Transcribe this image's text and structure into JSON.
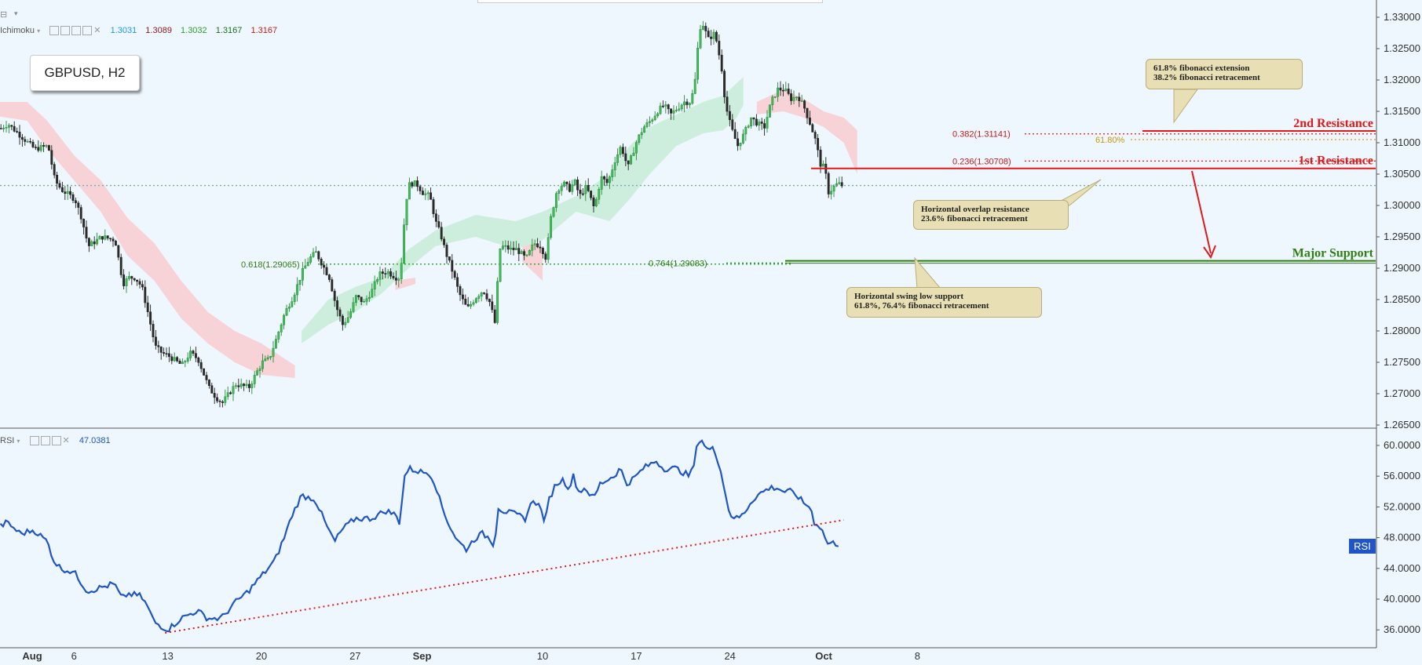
{
  "chart_data": [
    {
      "type": "candlestick",
      "title": "GBPUSD, H2",
      "symbol": "GBPUSD",
      "timeframe": "H2",
      "ylim": [
        1.2615,
        1.3345
      ],
      "y_ticks": [
        "1.33000",
        "1.32500",
        "1.32000",
        "1.31500",
        "1.31000",
        "1.30500",
        "1.30000",
        "1.29500",
        "1.29000",
        "1.28500",
        "1.28000",
        "1.27500",
        "1.27000",
        "1.26500"
      ],
      "x_ticks": [
        {
          "label": "Aug",
          "day": 0
        },
        {
          "label": "6",
          "day": 5
        },
        {
          "label": "13",
          "day": 12
        },
        {
          "label": "20",
          "day": 19
        },
        {
          "label": "27",
          "day": 26
        },
        {
          "label": "Sep",
          "day": 31
        },
        {
          "label": "10",
          "day": 40
        },
        {
          "label": "17",
          "day": 47
        },
        {
          "label": "24",
          "day": 54
        },
        {
          "label": "Oct",
          "day": 61
        },
        {
          "label": "8",
          "day": 68
        }
      ],
      "price_path": [
        [
          -1.5,
          1.311
        ],
        [
          0,
          1.313
        ],
        [
          1,
          1.311
        ],
        [
          2,
          1.309
        ],
        [
          3,
          1.3095
        ],
        [
          3.5,
          1.304
        ],
        [
          4,
          1.3025
        ],
        [
          5,
          1.301
        ],
        [
          5.5,
          1.298
        ],
        [
          6,
          1.2935
        ],
        [
          7,
          1.295
        ],
        [
          8,
          1.2945
        ],
        [
          8.6,
          1.2875
        ],
        [
          9,
          1.2885
        ],
        [
          9.5,
          1.2885
        ],
        [
          10,
          1.287
        ],
        [
          10.5,
          1.2825
        ],
        [
          11,
          1.2775
        ],
        [
          11.5,
          1.2765
        ],
        [
          12,
          1.276
        ],
        [
          13,
          1.2745
        ],
        [
          13.6,
          1.2765
        ],
        [
          14.2,
          1.2755
        ],
        [
          15,
          1.271
        ],
        [
          15.5,
          1.2695
        ],
        [
          16,
          1.2685
        ],
        [
          17,
          1.2715
        ],
        [
          18,
          1.271
        ],
        [
          18.6,
          1.2735
        ],
        [
          19,
          1.275
        ],
        [
          19.5,
          1.2755
        ],
        [
          20,
          1.2785
        ],
        [
          20.7,
          1.283
        ],
        [
          21.3,
          1.2855
        ],
        [
          22,
          1.2895
        ],
        [
          22.5,
          1.2915
        ],
        [
          23,
          1.2925
        ],
        [
          23.5,
          1.2905
        ],
        [
          24,
          1.2885
        ],
        [
          24.5,
          1.284
        ],
        [
          25,
          1.281
        ],
        [
          25.5,
          1.2825
        ],
        [
          26,
          1.2855
        ],
        [
          26.6,
          1.2845
        ],
        [
          27.2,
          1.2865
        ],
        [
          27.7,
          1.289
        ],
        [
          28.3,
          1.2895
        ],
        [
          29,
          1.2885
        ],
        [
          29.3,
          1.2885
        ],
        [
          29.7,
          1.3005
        ],
        [
          30,
          1.3035
        ],
        [
          30.5,
          1.3035
        ],
        [
          31,
          1.302
        ],
        [
          31.5,
          1.3015
        ],
        [
          32,
          1.297
        ],
        [
          32.3,
          1.2955
        ],
        [
          32.7,
          1.2925
        ],
        [
          33.2,
          1.2895
        ],
        [
          33.7,
          1.286
        ],
        [
          34.3,
          1.2835
        ],
        [
          35,
          1.2855
        ],
        [
          35.5,
          1.2865
        ],
        [
          36,
          1.2845
        ],
        [
          36.4,
          1.281
        ],
        [
          36.7,
          1.293
        ],
        [
          37,
          1.2935
        ],
        [
          37.5,
          1.293
        ],
        [
          38,
          1.293
        ],
        [
          38.7,
          1.2915
        ],
        [
          39.3,
          1.294
        ],
        [
          39.8,
          1.2935
        ],
        [
          40.2,
          1.2915
        ],
        [
          40.5,
          1.2975
        ],
        [
          41,
          1.3025
        ],
        [
          41.5,
          1.3035
        ],
        [
          42,
          1.3025
        ],
        [
          42.3,
          1.304
        ],
        [
          42.7,
          1.3015
        ],
        [
          43.2,
          1.303
        ],
        [
          43.8,
          1.2995
        ],
        [
          44.3,
          1.3045
        ],
        [
          44.8,
          1.3035
        ],
        [
          45.3,
          1.307
        ],
        [
          45.8,
          1.3095
        ],
        [
          46.3,
          1.306
        ],
        [
          47,
          1.3105
        ],
        [
          47.5,
          1.3125
        ],
        [
          48,
          1.3135
        ],
        [
          48.5,
          1.315
        ],
        [
          49,
          1.316
        ],
        [
          49.5,
          1.3145
        ],
        [
          50,
          1.3155
        ],
        [
          50.5,
          1.3165
        ],
        [
          51,
          1.3165
        ],
        [
          51.3,
          1.3195
        ],
        [
          51.6,
          1.327
        ],
        [
          51.8,
          1.3295
        ],
        [
          52.3,
          1.3265
        ],
        [
          52.8,
          1.3275
        ],
        [
          53.3,
          1.322
        ],
        [
          53.6,
          1.316
        ],
        [
          54,
          1.3125
        ],
        [
          54.5,
          1.3095
        ],
        [
          55,
          1.3115
        ],
        [
          55.5,
          1.314
        ],
        [
          56,
          1.313
        ],
        [
          56.5,
          1.3125
        ],
        [
          57,
          1.3165
        ],
        [
          57.5,
          1.3185
        ],
        [
          58,
          1.3185
        ],
        [
          58.5,
          1.317
        ],
        [
          59,
          1.3175
        ],
        [
          59.5,
          1.3155
        ],
        [
          60,
          1.3125
        ],
        [
          60.3,
          1.3105
        ],
        [
          60.7,
          1.3065
        ],
        [
          61,
          1.306
        ],
        [
          61.3,
          1.302
        ],
        [
          61.7,
          1.303
        ],
        [
          62,
          1.3035
        ],
        [
          62.3,
          1.3032
        ]
      ],
      "ichimoku": {
        "values": [
          "1.3031",
          "1.3089",
          "1.3032",
          "1.3167",
          "1.3167"
        ],
        "cloud_bullish": [
          [
            32,
            1.2935,
            1.296
          ],
          [
            35,
            1.295,
            1.2985
          ],
          [
            38,
            1.293,
            1.2975
          ],
          [
            40,
            1.2945,
            1.299
          ],
          [
            42.5,
            1.299,
            1.3015
          ],
          [
            45,
            1.2975,
            1.305
          ],
          [
            46.5,
            1.301,
            1.3095
          ],
          [
            48,
            1.305,
            1.3125
          ],
          [
            50,
            1.3095,
            1.3145
          ],
          [
            52,
            1.3115,
            1.3165
          ],
          [
            53.5,
            1.312,
            1.3175
          ],
          [
            54.5,
            1.314,
            1.3195
          ],
          [
            55,
            1.316,
            1.3205
          ]
        ],
        "cloud_bearish": [
          [
            -1.5,
            1.3145,
            1.3165
          ],
          [
            1.5,
            1.3135,
            1.3165
          ],
          [
            3,
            1.309,
            1.3135
          ],
          [
            5,
            1.304,
            1.308
          ],
          [
            7,
            1.299,
            1.304
          ],
          [
            9,
            1.292,
            1.298
          ],
          [
            11,
            1.288,
            1.294
          ],
          [
            13,
            1.282,
            1.288
          ],
          [
            15,
            1.278,
            1.283
          ],
          [
            17,
            1.275,
            1.28
          ],
          [
            19,
            1.273,
            1.278
          ],
          [
            21.5,
            1.2725,
            1.2745
          ],
          [
            29,
            1.2865,
            1.288
          ],
          [
            30.5,
            1.2875,
            1.2885
          ],
          [
            38.5,
            1.291,
            1.2955
          ],
          [
            40,
            1.288,
            1.293
          ],
          [
            56,
            1.3145,
            1.3165
          ],
          [
            58,
            1.315,
            1.3185
          ],
          [
            59.5,
            1.314,
            1.317
          ],
          [
            61,
            1.3125,
            1.315
          ],
          [
            62.5,
            1.31,
            1.314
          ],
          [
            63.5,
            1.305,
            1.312
          ]
        ]
      },
      "current_price": "1.30318",
      "levels": [
        {
          "name": "2nd Resistance",
          "price": "1.31188",
          "color": "#e31919"
        },
        {
          "name": "1st Resistance",
          "price": "1.30591",
          "color": "#e31919"
        },
        {
          "name": "Major Support",
          "price": "1.29117",
          "color": "#2e7d12"
        }
      ],
      "fib_labels": [
        {
          "text": "0.382(1.31141)",
          "price": 1.31141
        },
        {
          "text": "0.236(1.30708)",
          "price": 1.30708
        },
        {
          "text": "61.80%",
          "price": 1.3105
        },
        {
          "text": "0.618(1.29065)",
          "price": 1.29065
        },
        {
          "text": "0.764(1.29083)",
          "price": 1.29083
        }
      ],
      "annotations": [
        {
          "line1": "61.8% fibonacci extension",
          "line2": "38.2% fibonacci retracement"
        },
        {
          "line1": "Horizontal overlap resistance",
          "line2": "23.6% fibonacci retracement"
        },
        {
          "line1": "Horizontal swing low support",
          "line2": "61.8%, 76.4% fibonacci retracement"
        }
      ]
    },
    {
      "type": "line",
      "title": "RSI",
      "value": "47.0381",
      "ylim": [
        34.5,
        61.8
      ],
      "y_ticks": [
        "60.0000",
        "56.0000",
        "52.0000",
        "48.0000",
        "44.0000",
        "40.0000",
        "36.0000"
      ],
      "series": [
        [
          -1.5,
          48.5
        ],
        [
          0,
          50
        ],
        [
          1,
          48.5
        ],
        [
          2,
          49
        ],
        [
          3,
          47.5
        ],
        [
          3.5,
          45
        ],
        [
          4,
          44
        ],
        [
          5,
          43.5
        ],
        [
          6,
          41
        ],
        [
          7,
          41.5
        ],
        [
          8,
          42
        ],
        [
          8.6,
          40
        ],
        [
          9,
          40.7
        ],
        [
          10,
          40.4
        ],
        [
          10.5,
          39
        ],
        [
          11,
          37
        ],
        [
          12,
          36
        ],
        [
          13,
          37.5
        ],
        [
          14.2,
          38.5
        ],
        [
          15,
          37.5
        ],
        [
          16,
          37.5
        ],
        [
          17,
          39.5
        ],
        [
          18,
          41
        ],
        [
          19,
          43
        ],
        [
          20,
          45
        ],
        [
          20.7,
          48
        ],
        [
          21.3,
          51
        ],
        [
          22,
          53.5
        ],
        [
          23,
          53
        ],
        [
          23.5,
          51
        ],
        [
          24,
          49
        ],
        [
          24.5,
          47.5
        ],
        [
          25,
          49
        ],
        [
          26,
          50.5
        ],
        [
          27.2,
          50.5
        ],
        [
          28.3,
          51.5
        ],
        [
          29,
          51
        ],
        [
          29.3,
          50
        ],
        [
          29.7,
          56
        ],
        [
          30,
          57
        ],
        [
          31,
          56.5
        ],
        [
          31.5,
          56.5
        ],
        [
          32,
          55
        ],
        [
          32.3,
          53
        ],
        [
          32.7,
          51
        ],
        [
          33.2,
          49
        ],
        [
          33.7,
          47.5
        ],
        [
          34.3,
          46.5
        ],
        [
          35,
          48
        ],
        [
          35.5,
          48.5
        ],
        [
          36,
          48
        ],
        [
          36.4,
          47
        ],
        [
          36.7,
          52
        ],
        [
          37,
          51.5
        ],
        [
          38,
          51
        ],
        [
          38.7,
          50.5
        ],
        [
          39.3,
          53
        ],
        [
          39.8,
          52
        ],
        [
          40.2,
          50
        ],
        [
          40.5,
          53
        ],
        [
          41,
          55
        ],
        [
          41.5,
          55.5
        ],
        [
          42,
          54.5
        ],
        [
          42.3,
          56
        ],
        [
          42.7,
          54
        ],
        [
          43.2,
          54.5
        ],
        [
          43.8,
          53
        ],
        [
          44.3,
          55
        ],
        [
          45.3,
          56
        ],
        [
          45.8,
          57
        ],
        [
          46.3,
          55
        ],
        [
          47,
          56
        ],
        [
          47.5,
          57
        ],
        [
          48,
          57.5
        ],
        [
          48.5,
          58
        ],
        [
          49,
          57
        ],
        [
          49.5,
          57
        ],
        [
          50,
          57
        ],
        [
          50.5,
          56.5
        ],
        [
          51,
          56
        ],
        [
          51.3,
          57.5
        ],
        [
          51.6,
          60.5
        ],
        [
          51.8,
          61
        ],
        [
          52.3,
          59.5
        ],
        [
          52.8,
          59.5
        ],
        [
          53.3,
          57
        ],
        [
          53.6,
          54
        ],
        [
          54,
          51
        ],
        [
          54.5,
          50.5
        ],
        [
          55,
          51
        ],
        [
          55.5,
          52.5
        ],
        [
          56,
          53.5
        ],
        [
          57,
          54.5
        ],
        [
          57.5,
          54.5
        ],
        [
          58,
          54
        ],
        [
          58.5,
          54
        ],
        [
          59,
          53.5
        ],
        [
          59.5,
          52.5
        ],
        [
          60,
          52
        ],
        [
          60.3,
          50
        ],
        [
          60.7,
          49.5
        ],
        [
          61,
          48.5
        ],
        [
          61.3,
          47.2
        ],
        [
          61.7,
          47.3
        ],
        [
          62,
          47.2
        ],
        [
          62.3,
          47
        ]
      ],
      "trendline": [
        [
          11.8,
          35.6
        ],
        [
          62.5,
          50.3
        ]
      ]
    }
  ],
  "ui": {
    "ichimoku_name": "Ichimoku",
    "rsi_name": "RSI",
    "rsi_label": "RSI"
  }
}
